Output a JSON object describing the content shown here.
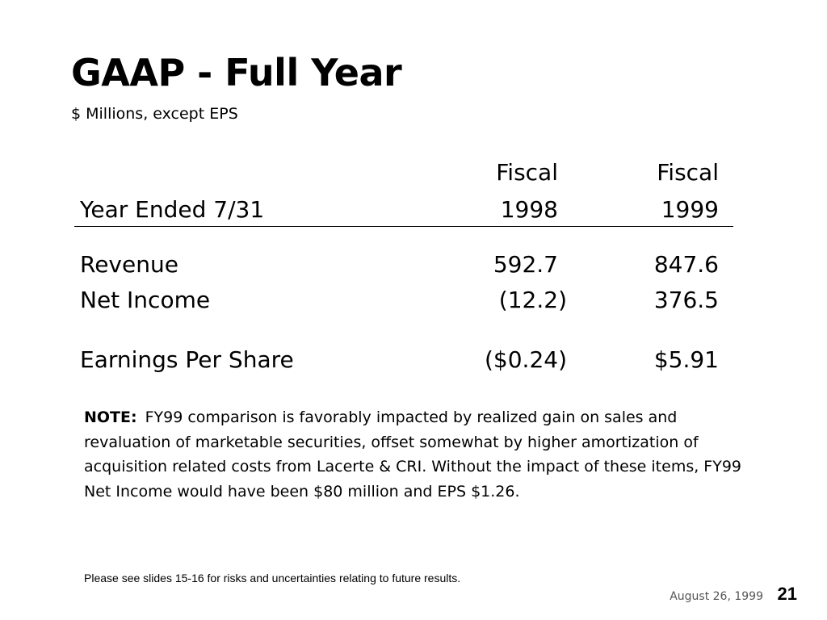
{
  "slide": {
    "title": "GAAP - Full Year",
    "subtitle": "$ Millions, except EPS"
  },
  "table": {
    "header": {
      "row1": {
        "label": "",
        "col1": "Fiscal",
        "col2": "Fiscal"
      },
      "row2": {
        "label": "Year Ended 7/31",
        "col1": "1998",
        "col2": "1999"
      }
    },
    "rows": [
      {
        "label": "Revenue",
        "fy1998": "592.7",
        "fy1999": "847.6"
      },
      {
        "label": "Net Income",
        "fy1998": "(12.2)",
        "fy1999": "376.5"
      },
      {
        "label": "Earnings Per Share",
        "fy1998": "($0.24)",
        "fy1999": "$5.91"
      }
    ]
  },
  "note": {
    "label": "NOTE:",
    "text": "FY99 comparison is favorably impacted by realized gain on sales and revaluation of marketable securities, offset somewhat by higher amortization of acquisition related costs from Lacerte & CRI. Without the impact of these items, FY99 Net Income would have been $80 million and EPS $1.26."
  },
  "footer": {
    "disclaimer": "Please see slides 15-16 for risks and uncertainties relating to future results.",
    "date": "August 26, 1999",
    "page_number": "21"
  }
}
